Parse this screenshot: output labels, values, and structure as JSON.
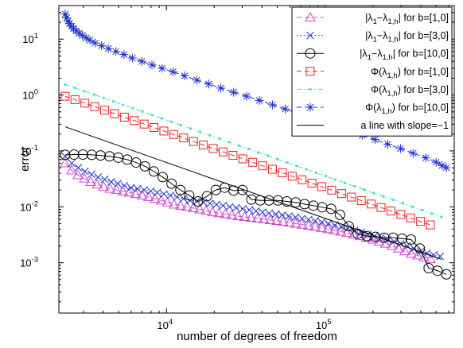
{
  "chart_data": {
    "type": "line",
    "xlabel": "number of degrees of freedom",
    "ylabel": "error",
    "xscale": "log",
    "yscale": "log",
    "xlim": [
      2100,
      650000
    ],
    "ylim": [
      0.0001259,
      39.81
    ],
    "x_ticks": [
      {
        "value": 10000,
        "base": "10",
        "exp": "4"
      },
      {
        "value": 100000,
        "base": "10",
        "exp": "5"
      }
    ],
    "y_ticks": [
      {
        "value": 0.001,
        "base": "10",
        "exp": "-3"
      },
      {
        "value": 0.01,
        "base": "10",
        "exp": "-2"
      },
      {
        "value": 0.1,
        "base": "10",
        "exp": "-1"
      },
      {
        "value": 1,
        "base": "10",
        "exp": "0"
      },
      {
        "value": 10,
        "base": "10",
        "exp": "1"
      }
    ],
    "grid": false,
    "legend_position": "top-right",
    "series": [
      {
        "name": "|λ1−λ1,h| for b=[1,0]",
        "legend": {
          "pre": "|λ",
          "sub1": "1",
          "mid": "−λ",
          "sub2": "1,h",
          "post": "| for b=[1,0]"
        },
        "color": "#cc44cc",
        "marker": "triangle",
        "line_style": "dashed",
        "x_range": [
          2300,
          460000
        ],
        "points": 58,
        "values": [
          0.06,
          0.045,
          0.037,
          0.032,
          0.028,
          0.025,
          0.023,
          0.021,
          0.02,
          0.019,
          0.018,
          0.017,
          0.016,
          0.015,
          0.014,
          0.013,
          0.012,
          0.011,
          0.0105,
          0.01,
          0.0095,
          0.009,
          0.0085,
          0.008,
          0.0077,
          0.0074,
          0.0071,
          0.0068,
          0.0066,
          0.0064,
          0.0062,
          0.006,
          0.0058,
          0.0056,
          0.0054,
          0.0052,
          0.005,
          0.0048,
          0.0046,
          0.0044,
          0.0042,
          0.004,
          0.0038,
          0.0036,
          0.0034,
          0.0032,
          0.003,
          0.0028,
          0.0026,
          0.0024,
          0.0022,
          0.002,
          0.0018,
          0.0016,
          0.00145,
          0.00135,
          0.00125,
          0.00117
        ]
      },
      {
        "name": "|λ1−λ1,h| for b=[3,0]",
        "legend": {
          "pre": "|λ",
          "sub1": "1",
          "mid": "−λ",
          "sub2": "1,h",
          "post": "| for b=[3,0]"
        },
        "color": "#2233cc",
        "marker": "x",
        "line_style": "dotted",
        "x_range": [
          2300,
          530000
        ],
        "points": 58,
        "values": [
          0.08,
          0.06,
          0.05,
          0.043,
          0.038,
          0.034,
          0.031,
          0.028,
          0.026,
          0.024,
          0.022,
          0.021,
          0.02,
          0.019,
          0.018,
          0.017,
          0.016,
          0.015,
          0.014,
          0.013,
          0.0125,
          0.012,
          0.0115,
          0.011,
          0.0105,
          0.01,
          0.0096,
          0.0092,
          0.0088,
          0.0084,
          0.008,
          0.0077,
          0.0074,
          0.0071,
          0.0068,
          0.0065,
          0.0062,
          0.0059,
          0.0056,
          0.0053,
          0.005,
          0.0047,
          0.0044,
          0.0041,
          0.0038,
          0.0035,
          0.0032,
          0.003,
          0.0028,
          0.0026,
          0.0024,
          0.0022,
          0.002,
          0.0018,
          0.0016,
          0.00148,
          0.00138,
          0.0013
        ]
      },
      {
        "name": "|λ1−λ1,h| for b=[10,0]",
        "legend": {
          "pre": "|λ",
          "sub1": "1",
          "mid": "−λ",
          "sub2": "1,h",
          "post": "| for b=[10,0]"
        },
        "color": "#000000",
        "marker": "circle",
        "line_style": "solid",
        "x_range": [
          2300,
          580000
        ],
        "points": 44,
        "values": [
          0.085,
          0.086,
          0.086,
          0.085,
          0.083,
          0.08,
          0.076,
          0.07,
          0.062,
          0.053,
          0.043,
          0.034,
          0.026,
          0.02,
          0.016,
          0.0125,
          0.0155,
          0.02,
          0.022,
          0.0195,
          0.02,
          0.0135,
          0.013,
          0.013,
          0.013,
          0.0125,
          0.012,
          0.0112,
          0.0105,
          0.0098,
          0.0092,
          0.0072,
          0.0045,
          0.0033,
          0.003,
          0.0029,
          0.0028,
          0.0028,
          0.0027,
          0.0026,
          0.0018,
          0.0008,
          0.00072,
          0.00062
        ]
      },
      {
        "name": "Φ(λ1,h) for b=[1,0]",
        "legend": {
          "pre": "Φ(λ",
          "sub1": "1,h",
          "mid": "",
          "sub2": "",
          "post": ") for b=[1,0]"
        },
        "color": "#ee2222",
        "marker": "square",
        "line_style": "dashed",
        "x_range": [
          2300,
          460000
        ],
        "points": 38,
        "slope_fit": {
          "x0": 2300,
          "y0": 0.95,
          "slope": -1.0
        }
      },
      {
        "name": "Φ(λ1,h) for b=[3,0]",
        "legend": {
          "pre": "Φ(λ",
          "sub1": "1,h",
          "mid": "",
          "sub2": "",
          "post": ") for b=[3,0]"
        },
        "color": "#44ddcc",
        "marker": "dot",
        "line_style": "dashdot",
        "x_range": [
          2300,
          540000
        ],
        "points": 40,
        "slope_fit": {
          "x0": 2300,
          "y0": 1.55,
          "slope": -1.0
        }
      },
      {
        "name": "Φ(λ1,h) for b=[10,0]",
        "legend": {
          "pre": "Φ(λ",
          "sub1": "1,h",
          "mid": "",
          "sub2": "",
          "post": ") for b=[10,0]"
        },
        "color": "#2233cc",
        "marker": "star",
        "line_style": "dashed",
        "x_range": [
          2300,
          580000
        ],
        "points": 44,
        "x_values": [
          2300,
          2350,
          2400,
          2450,
          2520,
          2600,
          2700,
          2820,
          2960,
          3120,
          3300,
          3550,
          3900,
          4300,
          4800,
          5400,
          6100,
          7000,
          8100,
          9400,
          11000,
          13000,
          15500,
          18500,
          22000,
          26500,
          32000,
          38500,
          46500,
          56000,
          67500,
          81500,
          98000,
          118000,
          142000,
          171000,
          206000,
          248000,
          298000,
          358000,
          430000,
          500000,
          545000,
          580000
        ],
        "values": [
          28,
          24,
          21,
          19,
          17,
          15.5,
          14,
          12.7,
          11.6,
          10.5,
          9.5,
          8.5,
          7.6,
          6.8,
          6.0,
          5.3,
          4.6,
          4.0,
          3.45,
          3.0,
          2.6,
          2.2,
          1.85,
          1.57,
          1.33,
          1.12,
          0.95,
          0.8,
          0.67,
          0.56,
          0.47,
          0.39,
          0.33,
          0.275,
          0.23,
          0.19,
          0.16,
          0.132,
          0.11,
          0.091,
          0.075,
          0.063,
          0.055,
          0.05
        ]
      },
      {
        "name": "a line with slope=−1",
        "legend": {
          "pre": "a line with slope=−1",
          "sub1": "",
          "mid": "",
          "sub2": "",
          "post": ""
        },
        "color": "#000000",
        "marker": "none",
        "line_style": "solid",
        "x": [
          2300,
          540000
        ],
        "values": [
          0.27,
          0.00115
        ]
      }
    ]
  }
}
